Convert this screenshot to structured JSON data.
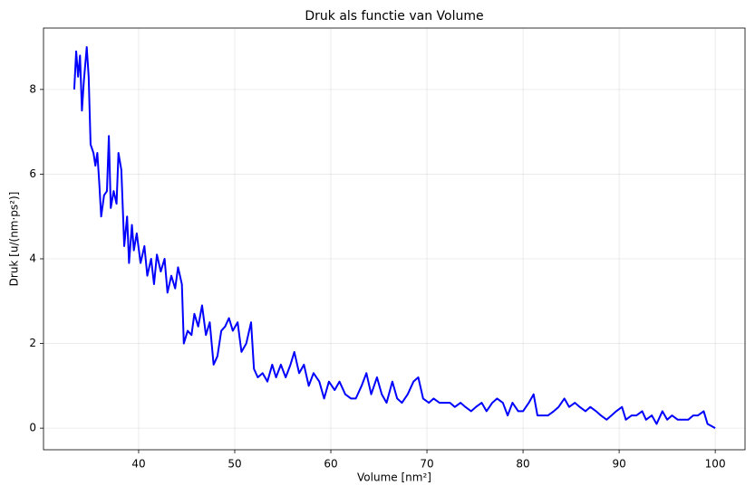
{
  "chart_data": {
    "type": "line",
    "title": "Druk als functie van Volume",
    "xlabel": "Volume [nm²]",
    "ylabel": "Druk [u/(nm·ps²)]",
    "xlim": [
      30.1,
      103.1
    ],
    "ylim": [
      -0.51,
      9.45
    ],
    "xticks": [
      40,
      50,
      60,
      70,
      80,
      90,
      100
    ],
    "yticks": [
      0,
      2,
      4,
      6,
      8
    ],
    "grid": true,
    "series": [
      {
        "color": "#0000ff",
        "x": [
          33.3,
          33.5,
          33.7,
          33.9,
          34.1,
          34.3,
          34.6,
          34.8,
          35.0,
          35.3,
          35.5,
          35.7,
          35.9,
          36.1,
          36.4,
          36.7,
          36.9,
          37.1,
          37.4,
          37.7,
          37.9,
          38.2,
          38.5,
          38.8,
          39.0,
          39.3,
          39.5,
          39.8,
          40.2,
          40.6,
          40.9,
          41.3,
          41.6,
          41.9,
          42.3,
          42.7,
          43.0,
          43.4,
          43.8,
          44.1,
          44.5,
          44.7,
          45.1,
          45.5,
          45.8,
          46.2,
          46.6,
          47.0,
          47.4,
          47.8,
          48.2,
          48.6,
          49.0,
          49.4,
          49.8,
          50.3,
          50.7,
          51.2,
          51.7,
          52.0,
          52.4,
          52.9,
          53.4,
          53.9,
          54.3,
          54.8,
          55.3,
          55.8,
          56.2,
          56.7,
          57.2,
          57.7,
          58.2,
          58.8,
          59.3,
          59.8,
          60.4,
          60.9,
          61.5,
          62.1,
          62.6,
          63.2,
          63.7,
          64.2,
          64.8,
          65.3,
          65.8,
          66.4,
          66.9,
          67.4,
          68.0,
          68.6,
          69.1,
          69.6,
          70.2,
          70.7,
          71.3,
          71.8,
          72.4,
          72.9,
          73.5,
          74.0,
          74.6,
          75.1,
          75.7,
          76.2,
          76.8,
          77.3,
          77.9,
          78.4,
          78.9,
          79.5,
          80.0,
          80.6,
          81.1,
          81.5,
          82.1,
          82.6,
          83.2,
          83.7,
          84.3,
          84.8,
          85.4,
          85.9,
          86.5,
          87.0,
          87.6,
          88.1,
          88.7,
          89.2,
          89.7,
          90.3,
          90.7,
          91.3,
          91.8,
          92.4,
          92.8,
          93.4,
          93.9,
          94.5,
          95.0,
          95.5,
          96.1,
          96.6,
          97.2,
          97.7,
          98.2,
          98.8,
          99.2,
          99.6,
          100.0
        ],
        "values": [
          8.0,
          8.9,
          8.3,
          8.8,
          7.5,
          8.2,
          9.0,
          8.3,
          6.7,
          6.5,
          6.2,
          6.5,
          5.8,
          5.0,
          5.5,
          5.6,
          6.9,
          5.2,
          5.6,
          5.3,
          6.5,
          6.1,
          4.3,
          5.0,
          3.9,
          4.8,
          4.2,
          4.6,
          3.9,
          4.3,
          3.6,
          4.0,
          3.4,
          4.1,
          3.7,
          4.0,
          3.2,
          3.6,
          3.3,
          3.8,
          3.4,
          2.0,
          2.3,
          2.2,
          2.7,
          2.4,
          2.9,
          2.2,
          2.5,
          1.5,
          1.7,
          2.3,
          2.4,
          2.6,
          2.3,
          2.5,
          1.8,
          2.0,
          2.5,
          1.4,
          1.2,
          1.3,
          1.1,
          1.5,
          1.2,
          1.5,
          1.2,
          1.5,
          1.8,
          1.3,
          1.5,
          1.0,
          1.3,
          1.1,
          0.7,
          1.1,
          0.9,
          1.1,
          0.8,
          0.7,
          0.7,
          1.0,
          1.3,
          0.8,
          1.2,
          0.8,
          0.6,
          1.1,
          0.7,
          0.6,
          0.8,
          1.1,
          1.2,
          0.7,
          0.6,
          0.7,
          0.6,
          0.6,
          0.6,
          0.5,
          0.6,
          0.5,
          0.4,
          0.5,
          0.6,
          0.4,
          0.6,
          0.7,
          0.6,
          0.3,
          0.6,
          0.4,
          0.4,
          0.6,
          0.8,
          0.3,
          0.3,
          0.3,
          0.4,
          0.5,
          0.7,
          0.5,
          0.6,
          0.5,
          0.4,
          0.5,
          0.4,
          0.3,
          0.2,
          0.3,
          0.4,
          0.5,
          0.2,
          0.3,
          0.3,
          0.4,
          0.2,
          0.3,
          0.1,
          0.4,
          0.2,
          0.3,
          0.2,
          0.2,
          0.2,
          0.3,
          0.3,
          0.4,
          0.1,
          0.05,
          0.0
        ]
      }
    ]
  }
}
